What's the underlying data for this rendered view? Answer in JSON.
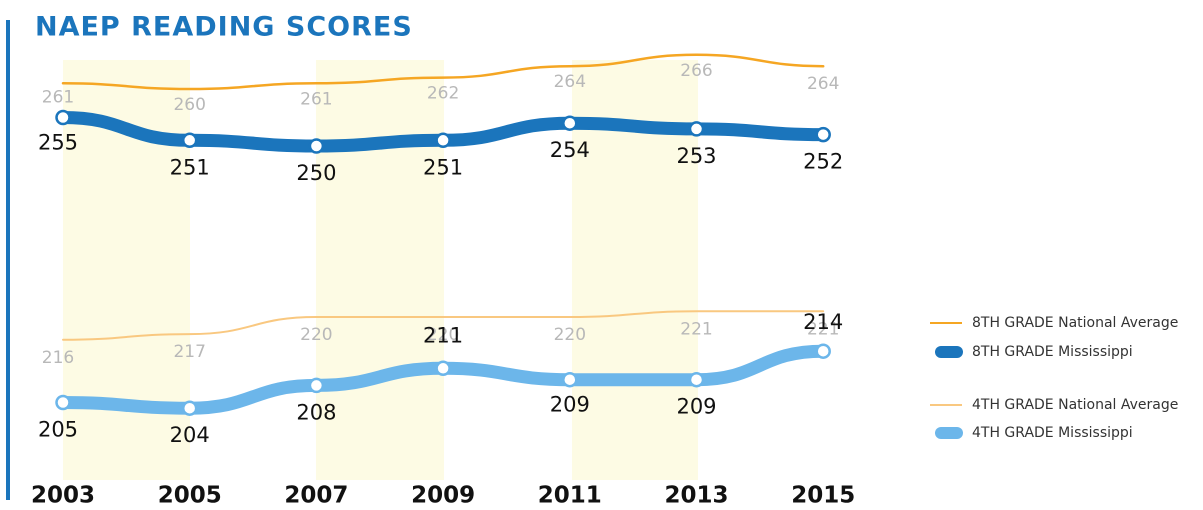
{
  "chart_data": {
    "type": "line",
    "title": "NAEP READING SCORES",
    "categories": [
      "2003",
      "2005",
      "2007",
      "2009",
      "2011",
      "2013",
      "2015"
    ],
    "ylim": [
      190,
      270
    ],
    "series": [
      {
        "name": "8TH GRADE National Average",
        "color": "#f5a623",
        "values": [
          261,
          260,
          261,
          262,
          264,
          266,
          264
        ]
      },
      {
        "name": "8TH GRADE Mississippi",
        "color": "#1b75bc",
        "values": [
          255,
          251,
          250,
          251,
          254,
          253,
          252
        ]
      },
      {
        "name": "4TH GRADE National Average",
        "color": "#f9c880",
        "values": [
          216,
          217,
          220,
          220,
          220,
          221,
          221
        ]
      },
      {
        "name": "4TH GRADE Mississippi",
        "color": "#6cb6ea",
        "values": [
          205,
          204,
          208,
          211,
          209,
          209,
          214
        ]
      }
    ]
  }
}
